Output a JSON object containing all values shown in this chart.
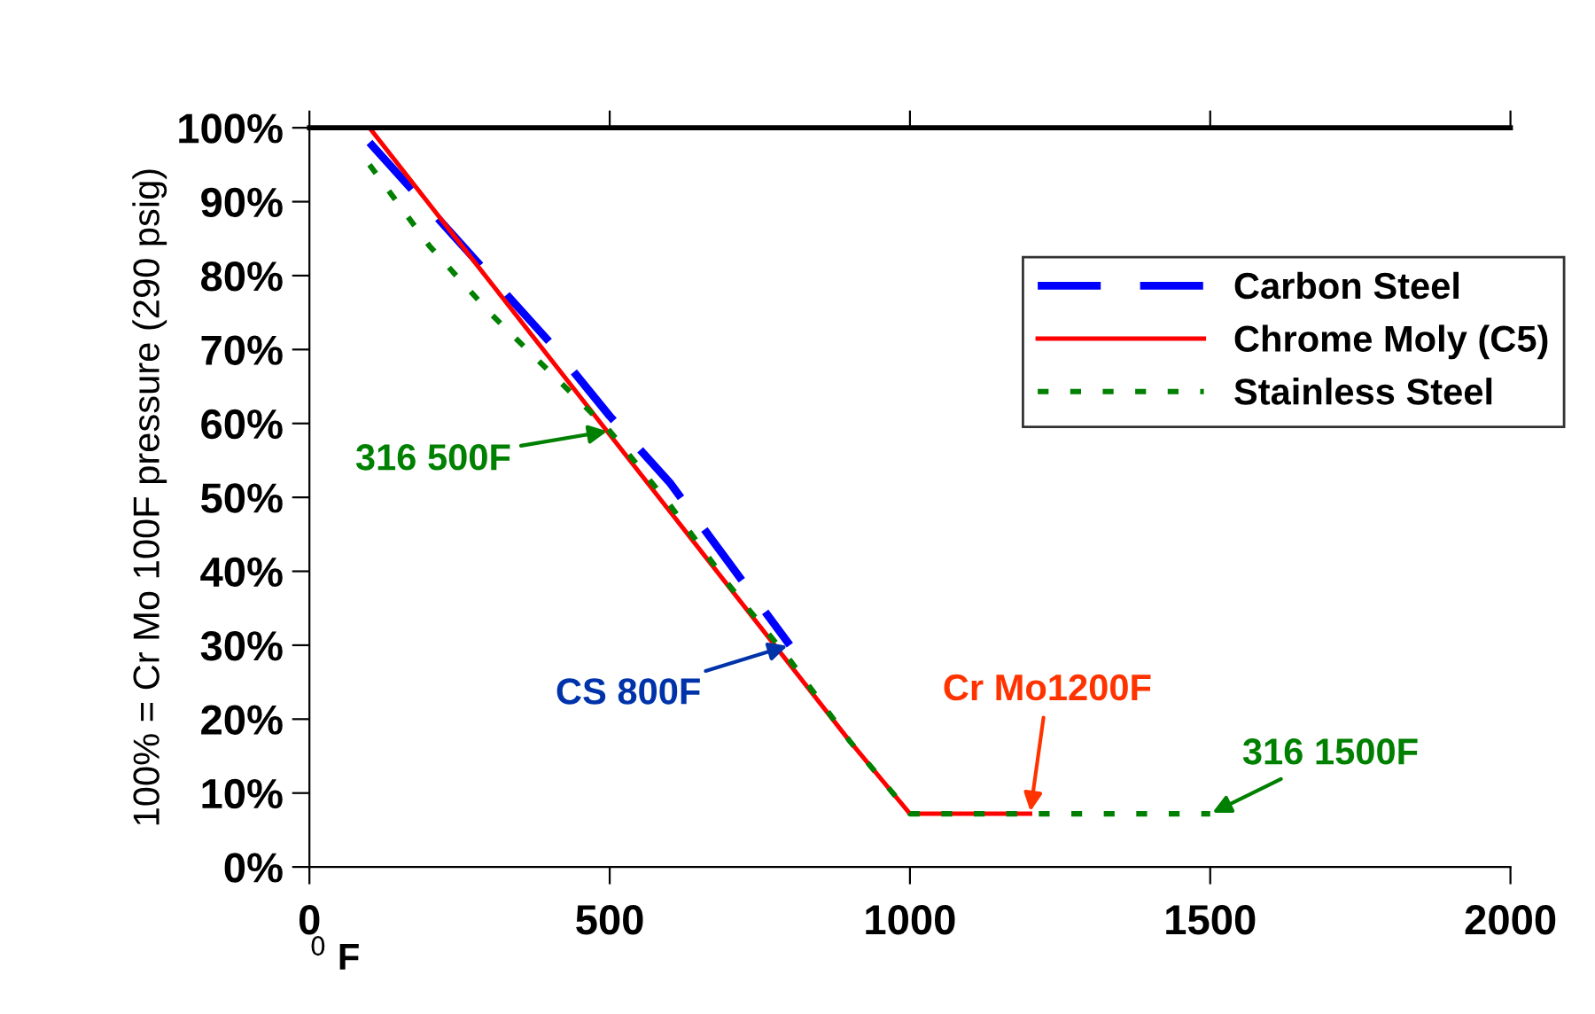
{
  "chart_data": {
    "type": "line",
    "xlabel": "$^{0}$ F",
    "ylabel": "100% = Cr Mo 100F pressure (290 psig)",
    "series": [
      {
        "name": "Carbon Steel",
        "color": "#0000ff",
        "line_style": "dashed",
        "x": [
          100,
          200,
          300,
          400,
          500,
          600,
          700,
          800
        ],
        "values": [
          98,
          89,
          80,
          71,
          61,
          52,
          41,
          30
        ]
      },
      {
        "name": "Chrome Moly (C5)",
        "color": "#ff0000",
        "line_style": "solid",
        "x": [
          100,
          500,
          900,
          1000,
          1200
        ],
        "values": [
          100,
          58.5,
          17,
          7.2,
          7.2
        ]
      },
      {
        "name": "Stainless Steel",
        "color": "#008000",
        "line_style": "dotted",
        "x": [
          100,
          200,
          300,
          400,
          500,
          600,
          700,
          800,
          900,
          1000,
          1500
        ],
        "values": [
          95,
          84,
          75,
          67,
          59,
          49,
          38,
          28,
          17,
          7.2,
          7.2
        ]
      }
    ],
    "annotations": [
      {
        "text": "316 500F",
        "x": 500,
        "y": 59
      },
      {
        "text": "CS 800F",
        "x": 800,
        "y": 30
      },
      {
        "text": "Cr Mo1200F",
        "x": 1200,
        "y": 7.2
      },
      {
        "text": "316 1500F",
        "x": 1500,
        "y": 7.2
      }
    ],
    "xlim": [
      0,
      2000
    ],
    "xticks": [
      0,
      500,
      1000,
      1500,
      2000
    ],
    "ylim": [
      0,
      100
    ],
    "yticks": [
      {
        "value": 0,
        "label": "0%"
      },
      {
        "value": 10,
        "label": "10%"
      },
      {
        "value": 20,
        "label": "20%"
      },
      {
        "value": 30,
        "label": "30%"
      },
      {
        "value": 40,
        "label": "40%"
      },
      {
        "value": 50,
        "label": "50%"
      },
      {
        "value": 60,
        "label": "60%"
      },
      {
        "value": 70,
        "label": "70%"
      },
      {
        "value": 80,
        "label": "80%"
      },
      {
        "value": 90,
        "label": "90%"
      },
      {
        "value": 100,
        "label": "100%"
      }
    ],
    "legend": "top right",
    "grid": false
  }
}
